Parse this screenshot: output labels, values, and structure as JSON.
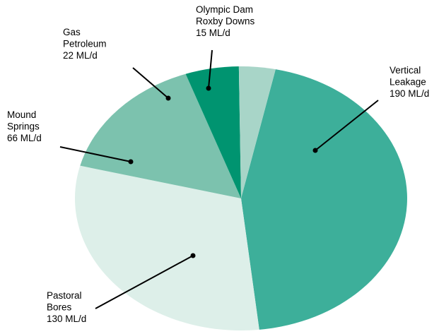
{
  "chart_data": {
    "type": "pie",
    "title": "",
    "unit": "ML/d",
    "slices": [
      {
        "name_lines": [
          "Vertical",
          "Leakage"
        ],
        "value": 190,
        "value_label": "190 ML/d",
        "color": "#3daf9a"
      },
      {
        "name_lines": [
          "Pastoral",
          "Bores"
        ],
        "value": 130,
        "value_label": "130 ML/d",
        "color": "#ddefe9"
      },
      {
        "name_lines": [
          "Mound",
          "Springs"
        ],
        "value": 66,
        "value_label": "66 ML/d",
        "color": "#7cc2ae"
      },
      {
        "name_lines": [
          "Gas",
          "Petroleum"
        ],
        "value": 22,
        "value_label": "22 ML/d",
        "color": "#009470"
      },
      {
        "name_lines": [
          "Olympic Dam",
          "Roxby Downs"
        ],
        "value": 15,
        "value_label": "15 ML/d",
        "color": "#a8d5c8"
      }
    ]
  }
}
